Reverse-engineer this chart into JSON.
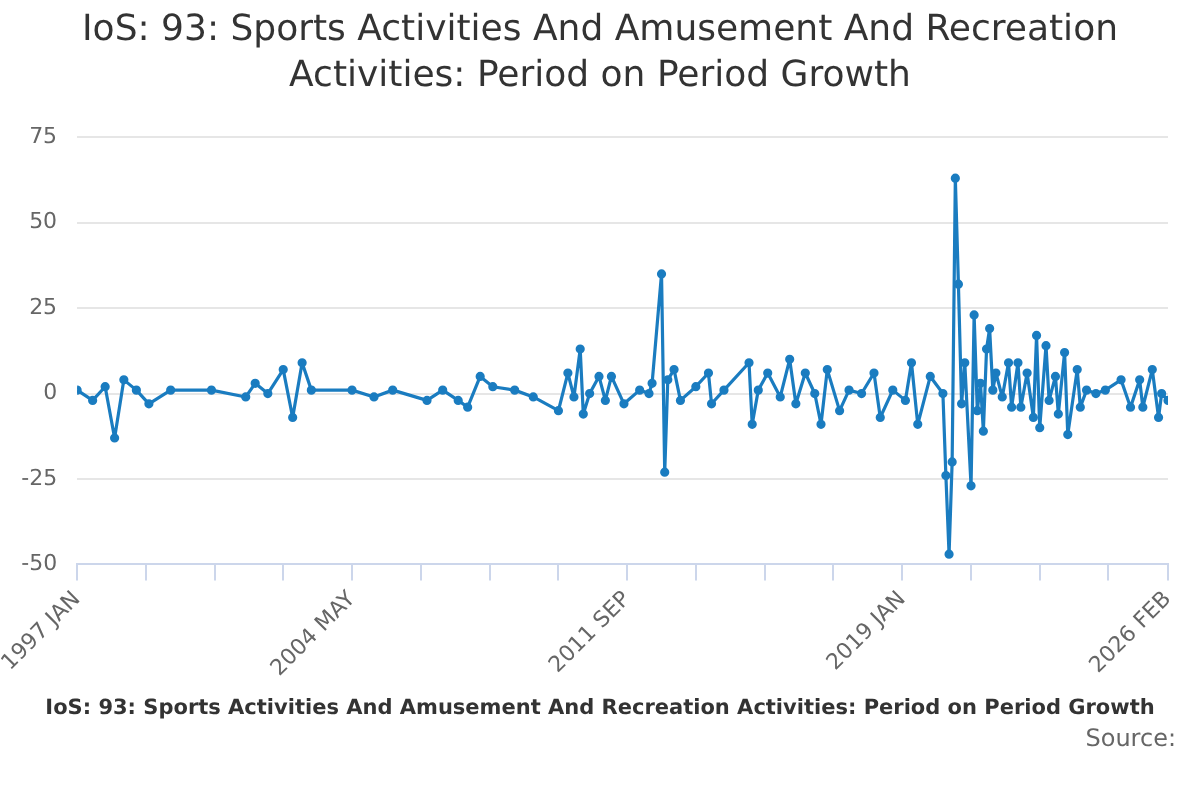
{
  "chart_data": {
    "type": "line",
    "title": "IoS: 93: Sports Activities And Amusement And Recreation Activities: Period on Period Growth",
    "annotations": [
      "IoS: 93: Sports Activities And Amusement And Recreation Activities: Period on Period Growth",
      "Source:"
    ],
    "x": [
      "1997-01",
      "1997-06",
      "1997-10",
      "1998-01",
      "1998-04",
      "1998-08",
      "1998-12",
      "1999-07",
      "2000-08",
      "2001-07",
      "2001-10",
      "2002-02",
      "2002-07",
      "2002-10",
      "2003-01",
      "2003-04",
      "2004-05",
      "2004-12",
      "2005-06",
      "2006-05",
      "2006-10",
      "2007-03",
      "2007-06",
      "2007-10",
      "2008-02",
      "2008-09",
      "2009-03",
      "2009-11",
      "2010-02",
      "2010-04",
      "2010-06",
      "2010-07",
      "2010-09",
      "2010-12",
      "2011-02",
      "2011-04",
      "2011-08",
      "2012-01",
      "2012-04",
      "2012-05",
      "2012-08",
      "2012-09",
      "2012-10",
      "2012-12",
      "2013-02",
      "2013-07",
      "2013-11",
      "2013-12",
      "2014-04",
      "2014-12",
      "2015-01",
      "2015-03",
      "2015-06",
      "2015-10",
      "2016-01",
      "2016-03",
      "2016-06",
      "2016-09",
      "2016-11",
      "2017-01",
      "2017-05",
      "2017-08",
      "2017-12",
      "2018-04",
      "2018-06",
      "2018-10",
      "2019-02",
      "2019-04",
      "2019-06",
      "2019-10",
      "2020-02",
      "2020-03",
      "2020-04",
      "2020-05",
      "2020-06",
      "2020-07",
      "2020-08",
      "2020-09",
      "2020-11",
      "2020-12",
      "2021-01",
      "2021-02",
      "2021-03",
      "2021-04",
      "2021-05",
      "2021-06",
      "2021-07",
      "2021-09",
      "2021-11",
      "2021-12",
      "2022-02",
      "2022-03",
      "2022-05",
      "2022-07",
      "2022-08",
      "2022-09",
      "2022-11",
      "2022-12",
      "2023-02",
      "2023-03",
      "2023-05",
      "2023-06",
      "2023-09",
      "2023-10",
      "2023-12",
      "2024-03",
      "2024-06",
      "2024-11",
      "2025-02",
      "2025-05",
      "2025-06",
      "2025-09",
      "2025-11",
      "2025-12",
      "2026-02"
    ],
    "series": [
      {
        "color": "#1a7cc0",
        "values": [
          1,
          -2,
          2,
          -13,
          4,
          1,
          -3,
          1,
          1,
          -1,
          3,
          0,
          7,
          -7,
          9,
          1,
          1,
          -1,
          1,
          -2,
          1,
          -2,
          -4,
          5,
          2,
          1,
          -1,
          -5,
          6,
          -1,
          13,
          -6,
          0,
          5,
          -2,
          5,
          -3,
          1,
          0,
          3,
          35,
          -23,
          4,
          7,
          -2,
          2,
          6,
          -3,
          1,
          9,
          -9,
          1,
          6,
          -1,
          10,
          -3,
          6,
          0,
          -9,
          7,
          -5,
          1,
          0,
          6,
          -7,
          1,
          -2,
          9,
          -9,
          5,
          0,
          -24,
          -47,
          -20,
          63,
          32,
          -3,
          9,
          -27,
          23,
          -5,
          3,
          -11,
          13,
          19,
          1,
          6,
          -1,
          9,
          -4,
          9,
          -4,
          6,
          -7,
          17,
          -10,
          14,
          -2,
          5,
          -6,
          12,
          -12,
          7,
          -4,
          1,
          0,
          1,
          4,
          -4,
          4,
          -4,
          7,
          -7,
          0,
          -2
        ]
      }
    ],
    "xlim": [
      "1997-01",
      "2026-02"
    ],
    "xticks": [
      {
        "value": "1997-01",
        "label": "1997 JAN"
      },
      {
        "value": "1998-11",
        "label": null
      },
      {
        "value": "2000-09",
        "label": null
      },
      {
        "value": "2002-07",
        "label": null
      },
      {
        "value": "2004-05",
        "label": "2004 MAY"
      },
      {
        "value": "2006-03",
        "label": null
      },
      {
        "value": "2008-01",
        "label": null
      },
      {
        "value": "2009-11",
        "label": null
      },
      {
        "value": "2011-09",
        "label": "2011 SEP"
      },
      {
        "value": "2013-07",
        "label": null
      },
      {
        "value": "2015-05",
        "label": null
      },
      {
        "value": "2017-03",
        "label": null
      },
      {
        "value": "2019-01",
        "label": "2019 JAN"
      },
      {
        "value": "2020-11",
        "label": null
      },
      {
        "value": "2022-09",
        "label": null
      },
      {
        "value": "2024-07",
        "label": null
      },
      {
        "value": "2026-02",
        "label": "2026 FEB"
      }
    ],
    "ylim": [
      -50,
      75
    ],
    "yticks": [
      -50,
      -25,
      0,
      25,
      50,
      75
    ],
    "grid": "y",
    "legend": false,
    "marker": "circle",
    "line_style": "solid"
  }
}
